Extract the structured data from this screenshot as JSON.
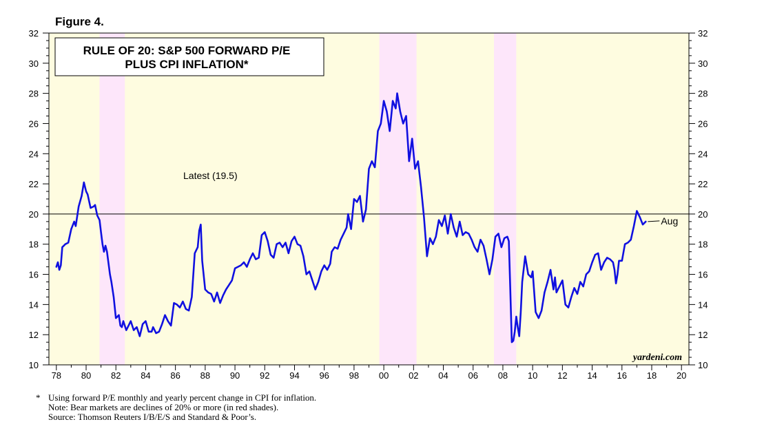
{
  "figure_label": "Figure 4.",
  "chart_data": {
    "type": "line",
    "title": [
      "RULE OF 20: S&P 500 FORWARD P/E",
      "PLUS CPI INFLATION*"
    ],
    "xlabel": "",
    "ylabel": "",
    "xlim": [
      1977.5,
      2020.5
    ],
    "ylim": [
      10,
      32
    ],
    "x_ticks": [
      1978,
      1980,
      1982,
      1984,
      1986,
      1988,
      1990,
      1992,
      1994,
      1996,
      1998,
      2000,
      2002,
      2004,
      2006,
      2008,
      2010,
      2012,
      2014,
      2016,
      2018,
      2020
    ],
    "x_tick_labels": [
      "78",
      "80",
      "82",
      "84",
      "86",
      "88",
      "90",
      "92",
      "94",
      "96",
      "98",
      "00",
      "02",
      "04",
      "06",
      "08",
      "10",
      "12",
      "14",
      "16",
      "18",
      "20"
    ],
    "y_ticks": [
      10,
      12,
      14,
      16,
      18,
      20,
      22,
      24,
      26,
      28,
      30,
      32
    ],
    "y_tick_labels": [
      "10",
      "12",
      "14",
      "16",
      "18",
      "20",
      "22",
      "24",
      "26",
      "28",
      "30",
      "32"
    ],
    "reference_line": 20,
    "background_color": "#fefce0",
    "bear_market_color": "#fde6fa",
    "line_color": "#1010e0",
    "bear_markets": [
      [
        1980.9,
        1982.6
      ],
      [
        1999.7,
        2002.2
      ],
      [
        2007.4,
        2008.9
      ]
    ],
    "series": [
      {
        "name": "S&P 500 Forward P/E plus CPI Inflation",
        "x": [
          1978.0,
          1978.1,
          1978.2,
          1978.3,
          1978.4,
          1978.5,
          1978.6,
          1978.8,
          1979.0,
          1979.2,
          1979.3,
          1979.5,
          1979.7,
          1979.85,
          1980.0,
          1980.1,
          1980.3,
          1980.5,
          1980.6,
          1980.75,
          1980.9,
          1981.0,
          1981.1,
          1981.2,
          1981.3,
          1981.4,
          1981.6,
          1981.7,
          1981.85,
          1982.0,
          1982.1,
          1982.2,
          1982.3,
          1982.4,
          1982.5,
          1982.7,
          1982.8,
          1983.0,
          1983.2,
          1983.4,
          1983.6,
          1983.8,
          1984.0,
          1984.2,
          1984.4,
          1984.5,
          1984.7,
          1984.9,
          1985.1,
          1985.3,
          1985.5,
          1985.7,
          1985.9,
          1986.1,
          1986.3,
          1986.5,
          1986.7,
          1986.9,
          1987.1,
          1987.3,
          1987.5,
          1987.6,
          1987.7,
          1987.8,
          1988.0,
          1988.2,
          1988.4,
          1988.6,
          1988.8,
          1989.0,
          1989.2,
          1989.4,
          1989.6,
          1989.8,
          1990.0,
          1990.2,
          1990.4,
          1990.6,
          1990.8,
          1991.0,
          1991.2,
          1991.4,
          1991.6,
          1991.8,
          1992.0,
          1992.2,
          1992.4,
          1992.6,
          1992.8,
          1993.0,
          1993.2,
          1993.4,
          1993.6,
          1993.8,
          1994.0,
          1994.2,
          1994.4,
          1994.6,
          1994.8,
          1995.0,
          1995.2,
          1995.4,
          1995.6,
          1995.8,
          1996.0,
          1996.2,
          1996.4,
          1996.5,
          1996.7,
          1996.9,
          1997.1,
          1997.3,
          1997.5,
          1997.6,
          1997.8,
          1998.0,
          1998.2,
          1998.4,
          1998.6,
          1998.8,
          1999.0,
          1999.2,
          1999.4,
          1999.6,
          1999.8,
          2000.0,
          2000.2,
          2000.4,
          2000.6,
          2000.8,
          2000.9,
          2001.1,
          2001.3,
          2001.5,
          2001.7,
          2001.9,
          2002.1,
          2002.3,
          2002.5,
          2002.7,
          2002.9,
          2003.1,
          2003.3,
          2003.5,
          2003.7,
          2003.9,
          2004.1,
          2004.3,
          2004.5,
          2004.7,
          2004.9,
          2005.1,
          2005.3,
          2005.5,
          2005.7,
          2005.9,
          2006.1,
          2006.3,
          2006.5,
          2006.7,
          2006.9,
          2007.1,
          2007.3,
          2007.5,
          2007.7,
          2007.9,
          2008.1,
          2008.3,
          2008.4,
          2008.5,
          2008.6,
          2008.7,
          2008.8,
          2008.9,
          2009.0,
          2009.1,
          2009.2,
          2009.3,
          2009.5,
          2009.7,
          2009.9,
          2010.0,
          2010.2,
          2010.4,
          2010.6,
          2010.8,
          2011.0,
          2011.2,
          2011.4,
          2011.5,
          2011.6,
          2011.8,
          2012.0,
          2012.2,
          2012.4,
          2012.6,
          2012.8,
          2013.0,
          2013.2,
          2013.4,
          2013.6,
          2013.8,
          2014.0,
          2014.2,
          2014.4,
          2014.6,
          2014.8,
          2015.0,
          2015.2,
          2015.4,
          2015.5,
          2015.6,
          2015.7,
          2015.8,
          2016.0,
          2016.2,
          2016.4,
          2016.6,
          2016.8,
          2017.0,
          2017.2,
          2017.4,
          2017.6
        ],
        "values": [
          16.5,
          16.8,
          16.3,
          16.6,
          17.8,
          17.9,
          18.0,
          18.1,
          19.0,
          19.5,
          19.2,
          20.5,
          21.2,
          22.1,
          21.5,
          21.3,
          20.4,
          20.5,
          20.6,
          19.9,
          19.6,
          18.8,
          18.0,
          17.5,
          17.9,
          17.5,
          16.0,
          15.5,
          14.5,
          13.1,
          13.2,
          13.3,
          12.6,
          12.5,
          12.9,
          12.3,
          12.5,
          12.9,
          12.3,
          12.5,
          11.9,
          12.7,
          12.9,
          12.2,
          12.2,
          12.5,
          12.1,
          12.2,
          12.7,
          13.3,
          12.9,
          12.6,
          14.1,
          14.0,
          13.8,
          14.2,
          13.7,
          13.6,
          14.5,
          17.4,
          17.8,
          18.9,
          19.3,
          16.9,
          15.0,
          14.8,
          14.7,
          14.2,
          14.8,
          14.1,
          14.6,
          15.0,
          15.3,
          15.6,
          16.4,
          16.5,
          16.6,
          16.8,
          16.5,
          17.0,
          17.4,
          17.0,
          17.1,
          18.6,
          18.8,
          18.2,
          17.3,
          17.1,
          18.0,
          18.1,
          17.8,
          18.1,
          17.4,
          18.2,
          18.5,
          18.0,
          17.9,
          17.2,
          16.0,
          16.2,
          15.6,
          15.0,
          15.5,
          16.2,
          16.6,
          16.3,
          16.7,
          17.5,
          17.8,
          17.7,
          18.3,
          18.7,
          19.1,
          20.0,
          19.0,
          21.0,
          20.8,
          21.2,
          19.5,
          20.3,
          23.0,
          23.5,
          23.1,
          25.5,
          26.0,
          27.5,
          26.8,
          25.5,
          27.5,
          27.0,
          28.0,
          26.8,
          26.0,
          26.5,
          23.5,
          25.0,
          23.0,
          23.5,
          21.8,
          19.8,
          17.2,
          18.4,
          18.0,
          18.5,
          19.6,
          19.2,
          19.9,
          18.7,
          20.0,
          19.1,
          18.5,
          19.5,
          18.6,
          18.8,
          18.7,
          18.3,
          17.8,
          17.5,
          18.3,
          17.9,
          17.0,
          16.0,
          17.0,
          18.5,
          18.7,
          17.8,
          18.4,
          18.5,
          18.2,
          15.0,
          11.5,
          11.6,
          12.2,
          13.2,
          12.5,
          11.9,
          13.5,
          15.5,
          17.2,
          16.0,
          15.8,
          16.2,
          13.5,
          13.1,
          13.6,
          14.8,
          15.5,
          16.3,
          15.0,
          15.8,
          14.8,
          15.2,
          15.6,
          14.0,
          13.8,
          14.5,
          15.1,
          14.7,
          15.5,
          15.2,
          16.0,
          16.2,
          16.8,
          17.3,
          17.4,
          16.3,
          16.8,
          17.1,
          17.0,
          16.8,
          16.3,
          15.4,
          16.0,
          16.9,
          16.9,
          18.0,
          18.1,
          18.3,
          19.2,
          20.2,
          19.8,
          19.3,
          19.5
        ],
        "latest_label": "Aug"
      }
    ],
    "annotations": [
      "Latest (19.5)"
    ],
    "watermark": "yardeni.com"
  },
  "footnotes": {
    "marker": "*",
    "line1": "Using forward P/E monthly and yearly percent change in CPI for inflation.",
    "line2": "Note: Bear markets are declines of 20% or more (in red shades).",
    "line3": "Source: Thomson Reuters I/B/E/S and Standard & Poor’s."
  }
}
